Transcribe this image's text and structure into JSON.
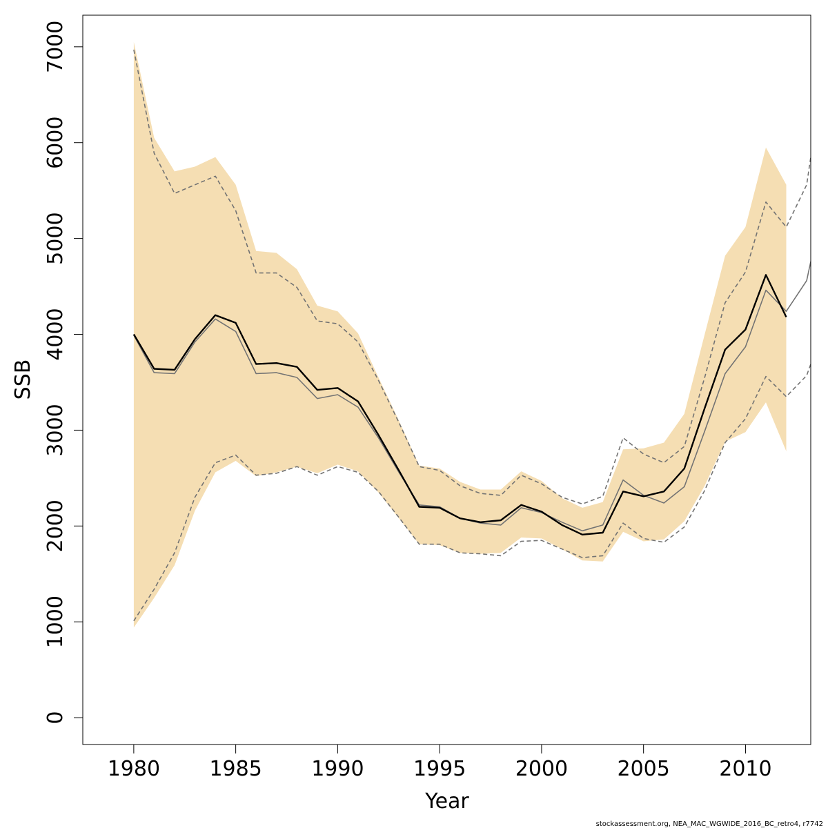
{
  "chart_data": {
    "type": "line",
    "xlabel": "Year",
    "ylabel": "SSB",
    "xlim": [
      1977.5,
      2013.2
    ],
    "ylim": [
      -280,
      7330
    ],
    "x_ticks": [
      1980,
      1985,
      1990,
      1995,
      2000,
      2005,
      2010
    ],
    "x_tick_labels": [
      "1980",
      "1985",
      "1990",
      "1995",
      "2000",
      "2005",
      "2010"
    ],
    "y_ticks": [
      0,
      1000,
      2000,
      3000,
      4000,
      5000,
      6000,
      7000
    ],
    "y_tick_labels": [
      "0",
      "1000",
      "2000",
      "3000",
      "4000",
      "5000",
      "6000",
      "7000"
    ],
    "grid": false,
    "legend": "none",
    "colors": {
      "band": "#f5deb3",
      "estimate": "#000000",
      "previous": "#737373"
    },
    "footnote": "stockassessment.org, NEA_MAC_WGWIDE_2016_BC_retro4, r7742",
    "confidence_band": {
      "x": [
        1980,
        1981,
        1982,
        1983,
        1984,
        1985,
        1986,
        1987,
        1988,
        1989,
        1990,
        1991,
        1992,
        1993,
        1994,
        1995,
        1996,
        1997,
        1998,
        1999,
        2000,
        2001,
        2002,
        2003,
        2004,
        2005,
        2006,
        2007,
        2008,
        2009,
        2010,
        2011,
        2012
      ],
      "upper": [
        7050,
        6050,
        5700,
        5750,
        5850,
        5560,
        4870,
        4850,
        4680,
        4300,
        4240,
        4010,
        3550,
        3100,
        2630,
        2600,
        2460,
        2380,
        2380,
        2570,
        2470,
        2290,
        2190,
        2250,
        2800,
        2810,
        2870,
        3170,
        4000,
        4820,
        5120,
        5950,
        5560
      ],
      "lower": [
        940,
        1250,
        1590,
        2160,
        2560,
        2680,
        2520,
        2560,
        2620,
        2550,
        2640,
        2570,
        2350,
        2080,
        1810,
        1800,
        1720,
        1710,
        1720,
        1880,
        1870,
        1760,
        1640,
        1630,
        1940,
        1840,
        1860,
        2050,
        2420,
        2880,
        2980,
        3290,
        2780
      ]
    },
    "series": [
      {
        "x": [
          1980,
          1981,
          1982,
          1983,
          1984,
          1985,
          1986,
          1987,
          1988,
          1989,
          1990,
          1991,
          1992,
          1993,
          1994,
          1995,
          1996,
          1997,
          1998,
          1999,
          2000,
          2001,
          2002,
          2003,
          2004,
          2005,
          2006,
          2007,
          2008,
          2009,
          2010,
          2011,
          2012
        ],
        "values": [
          4000,
          3640,
          3630,
          3950,
          4200,
          4120,
          3690,
          3700,
          3660,
          3420,
          3440,
          3300,
          2950,
          2580,
          2200,
          2190,
          2080,
          2040,
          2060,
          2220,
          2150,
          2010,
          1910,
          1930,
          2360,
          2310,
          2360,
          2600,
          3230,
          3840,
          4050,
          4620,
          4180
        ],
        "style": "solid",
        "color": "#000000"
      },
      {
        "x": [
          1980,
          1981,
          1982,
          1983,
          1984,
          1985,
          1986,
          1987,
          1988,
          1989,
          1990,
          1991,
          1992,
          1993,
          1994,
          1995,
          1996,
          1997,
          1998,
          1999,
          2000,
          2001,
          2002,
          2003,
          2004,
          2005,
          2006,
          2007,
          2008,
          2009,
          2010,
          2011,
          2012,
          2013,
          2013.2
        ],
        "values": [
          3990,
          3600,
          3590,
          3920,
          4160,
          4030,
          3590,
          3600,
          3550,
          3330,
          3370,
          3240,
          2920,
          2560,
          2220,
          2200,
          2080,
          2030,
          2010,
          2190,
          2140,
          2040,
          1950,
          2010,
          2480,
          2320,
          2240,
          2410,
          2990,
          3590,
          3870,
          4460,
          4240,
          4560,
          4760
        ],
        "style": "solid",
        "color": "#737373"
      },
      {
        "x": [
          1980,
          1981,
          1982,
          1983,
          1984,
          1985,
          1986,
          1987,
          1988,
          1989,
          1990,
          1991,
          1992,
          1993,
          1994,
          1995,
          1996,
          1997,
          1998,
          1999,
          2000,
          2001,
          2002,
          2003,
          2004,
          2005,
          2006,
          2007,
          2008,
          2009,
          2010,
          2011,
          2012,
          2013,
          2013.2
        ],
        "values": [
          6970,
          5890,
          5470,
          5560,
          5650,
          5290,
          4640,
          4640,
          4490,
          4140,
          4110,
          3920,
          3520,
          3080,
          2620,
          2580,
          2420,
          2340,
          2320,
          2530,
          2440,
          2300,
          2230,
          2310,
          2920,
          2750,
          2660,
          2830,
          3550,
          4330,
          4650,
          5380,
          5120,
          5560,
          5850
        ],
        "style": "dashed",
        "color": "#737373"
      },
      {
        "x": [
          1980,
          1981,
          1982,
          1983,
          1984,
          1985,
          1986,
          1987,
          1988,
          1989,
          1990,
          1991,
          1992,
          1993,
          1994,
          1995,
          1996,
          1997,
          1998,
          1999,
          2000,
          2001,
          2002,
          2003,
          2004,
          2005,
          2006,
          2007,
          2008,
          2009,
          2010,
          2011,
          2012,
          2013,
          2013.2
        ],
        "values": [
          1010,
          1340,
          1720,
          2300,
          2660,
          2740,
          2530,
          2550,
          2620,
          2530,
          2620,
          2560,
          2360,
          2090,
          1810,
          1810,
          1720,
          1710,
          1690,
          1840,
          1850,
          1760,
          1670,
          1690,
          2030,
          1870,
          1830,
          1990,
          2370,
          2870,
          3120,
          3560,
          3350,
          3570,
          3690
        ],
        "style": "dashed",
        "color": "#737373"
      }
    ]
  }
}
